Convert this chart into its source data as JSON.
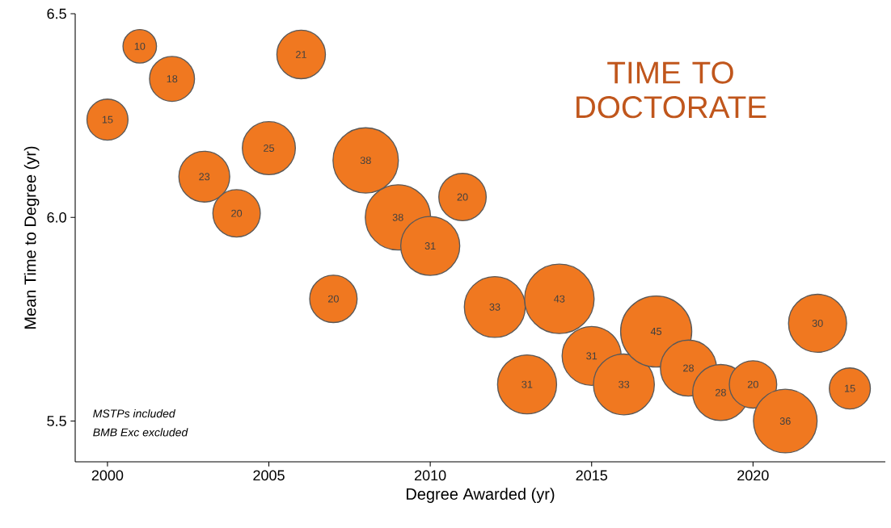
{
  "chart_data": {
    "type": "bubble",
    "title": "TIME TO DOCTORATE",
    "xlabel": "Degree Awarded (yr)",
    "ylabel": "Mean Time to Degree (yr)",
    "annotations": [
      "MSTPs included",
      "BMB Exc excluded"
    ],
    "x": [
      2000,
      2001,
      2002,
      2003,
      2004,
      2005,
      2006,
      2007,
      2008,
      2009,
      2010,
      2011,
      2012,
      2013,
      2014,
      2015,
      2016,
      2017,
      2018,
      2019,
      2020,
      2021,
      2022,
      2023
    ],
    "values": [
      6.24,
      6.42,
      6.34,
      6.1,
      6.01,
      6.17,
      6.4,
      5.8,
      6.14,
      6.0,
      5.93,
      6.05,
      5.78,
      5.59,
      5.8,
      5.66,
      5.59,
      5.72,
      5.63,
      5.57,
      5.59,
      5.5,
      5.74,
      5.58
    ],
    "sizes": [
      15,
      10,
      18,
      23,
      20,
      25,
      21,
      20,
      38,
      38,
      31,
      20,
      33,
      31,
      43,
      31,
      33,
      45,
      28,
      28,
      20,
      36,
      30,
      15
    ],
    "value_labels": [
      "15",
      "10",
      "18",
      "23",
      "20",
      "25",
      "21",
      "20",
      "38",
      "38",
      "31",
      "20",
      "33",
      "31",
      "43",
      "31",
      "33",
      "45",
      "28",
      "28",
      "20",
      "36",
      "30",
      "15"
    ],
    "color": "#f07820",
    "marker": "circle",
    "xlim": [
      1999,
      2024.1
    ],
    "ylim": [
      5.4,
      6.5
    ],
    "xticks": [
      2000,
      2005,
      2010,
      2015,
      2020
    ],
    "yticks": [
      {
        "value": 5.5,
        "label": "5.5"
      },
      {
        "value": 6.0,
        "label": "6.0"
      },
      {
        "value": 6.5,
        "label": "6.5"
      }
    ]
  }
}
